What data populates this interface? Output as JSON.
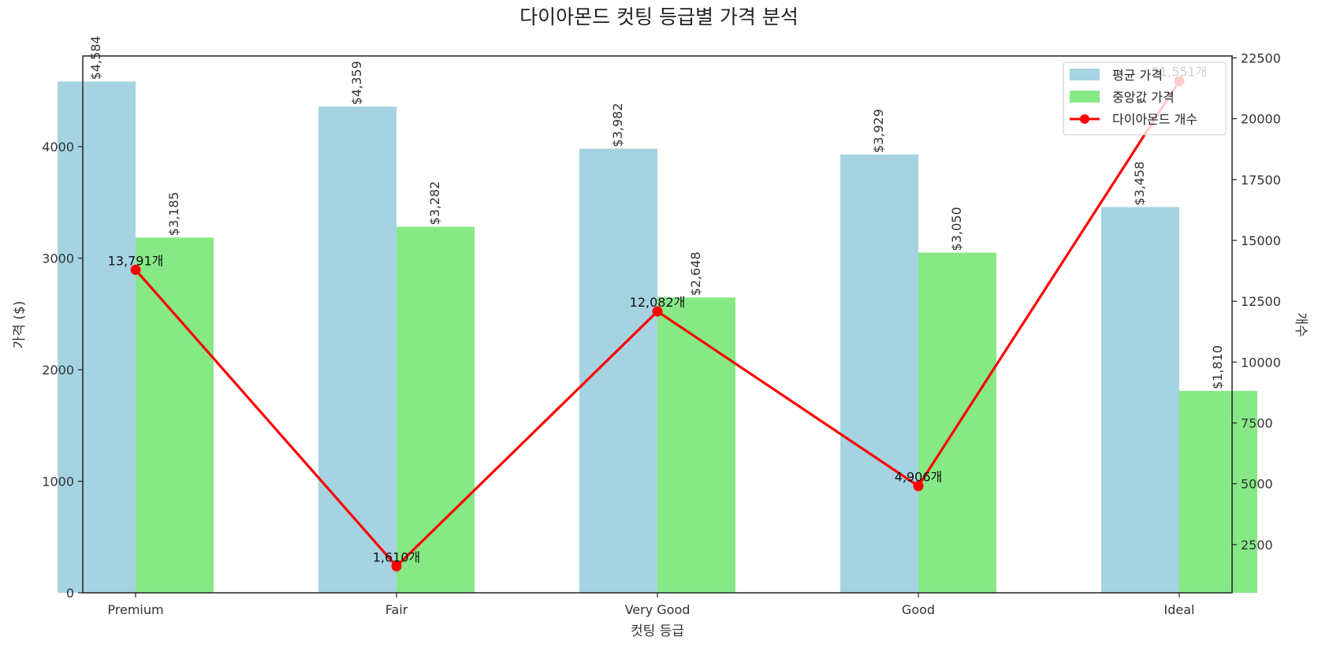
{
  "chart_data": {
    "type": "bar",
    "title": "다이아몬드 컷팅 등급별 가격 분석",
    "xlabel": "컷팅 등급",
    "ylabel": "가격 ($)",
    "y2label": "개수",
    "categories": [
      "Premium",
      "Fair",
      "Very Good",
      "Good",
      "Ideal"
    ],
    "ylim": [
      0,
      4813
    ],
    "y2lim": [
      522,
      22577
    ],
    "yticks": [
      0,
      1000,
      2000,
      3000,
      4000
    ],
    "y2ticks": [
      2500,
      5000,
      7500,
      10000,
      12500,
      15000,
      17500,
      20000,
      22500
    ],
    "series": [
      {
        "name": "평균 가격",
        "kind": "bar",
        "color": "#a5d3e2",
        "values": [
          4584,
          4359,
          3982,
          3929,
          3458
        ],
        "labels": [
          "$4,584",
          "$4,359",
          "$3,982",
          "$3,929",
          "$3,458"
        ]
      },
      {
        "name": "중앙값 가격",
        "kind": "bar",
        "color": "#86e986",
        "values": [
          3185,
          3282,
          2648,
          3050,
          1810
        ],
        "labels": [
          "$3,185",
          "$3,282",
          "$2,648",
          "$3,050",
          "$1,810"
        ]
      },
      {
        "name": "다이아몬드 개수",
        "kind": "line",
        "axis": "right",
        "color": "#ff0000",
        "values": [
          13791,
          1610,
          12082,
          4906,
          21551
        ],
        "labels": [
          "13,791개",
          "1,610개",
          "12,082개",
          "4,906개",
          "21,551개"
        ]
      }
    ],
    "legend": "top-right",
    "grid": false
  }
}
